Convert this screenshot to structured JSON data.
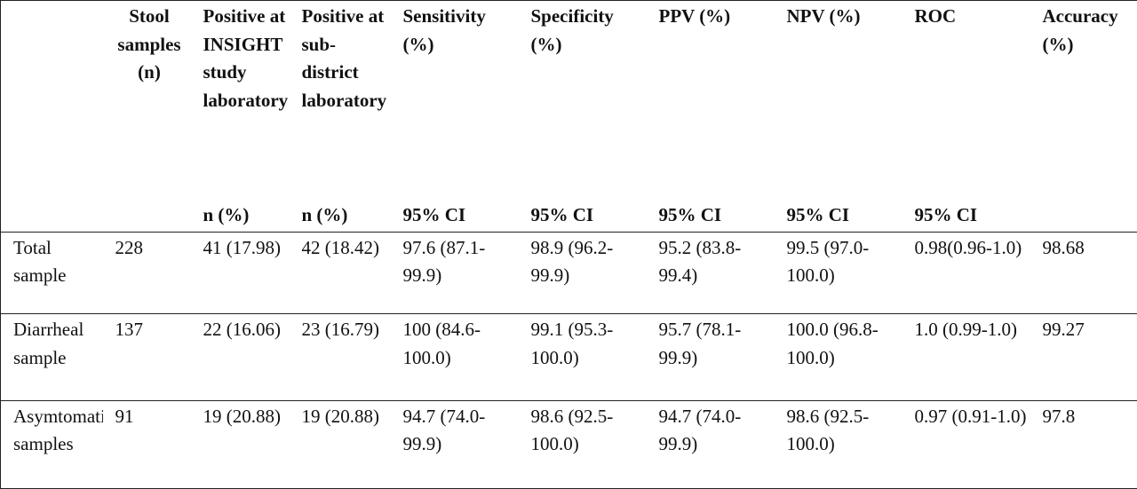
{
  "headers": {
    "c0": "",
    "c1": "Stool samples (n)",
    "c2_top": "Positive at INSIGHT study laboratory",
    "c2_bottom": "n (%)",
    "c3_top": "Positive at sub-district laboratory",
    "c3_bottom": "n (%)",
    "c4_top": "Sensitivity (%)",
    "c4_bottom": "95% CI",
    "c5_top": "Specificity (%)",
    "c5_bottom": "95% CI",
    "c6_top": "PPV (%)",
    "c6_bottom": "95% CI",
    "c7_top": "NPV (%)",
    "c7_bottom": "95% CI",
    "c8_top": "ROC",
    "c8_bottom": "95% CI",
    "c9": "Accuracy (%)"
  },
  "rows": [
    {
      "label": "Total sample",
      "n": "228",
      "insight": "41 (17.98)",
      "subdistrict": "42 (18.42)",
      "sensitivity": "97.6 (87.1-99.9)",
      "specificity": "98.9 (96.2-99.9)",
      "ppv": "95.2 (83.8-99.4)",
      "npv": "99.5 (97.0-100.0)",
      "roc": "0.98(0.96-1.0)",
      "accuracy": "98.68"
    },
    {
      "label": "Diarrheal sample",
      "n": "137",
      "insight": "22 (16.06)",
      "subdistrict": "23 (16.79)",
      "sensitivity": "100 (84.6-100.0)",
      "specificity": "99.1 (95.3-100.0)",
      "ppv": "95.7 (78.1-99.9)",
      "npv": "100.0 (96.8-100.0)",
      "roc": "1.0 (0.99-1.0)",
      "accuracy": "99.27"
    },
    {
      "label": "Asymtomatic samples",
      "n": "91",
      "insight": "19 (20.88)",
      "subdistrict": "19 (20.88)",
      "sensitivity": "94.7 (74.0-99.9)",
      "specificity": "98.6 (92.5-100.0)",
      "ppv": "94.7 (74.0-99.9)",
      "npv": "98.6 (92.5-100.0)",
      "roc": "0.97 (0.91-1.0)",
      "accuracy": "97.8"
    }
  ]
}
